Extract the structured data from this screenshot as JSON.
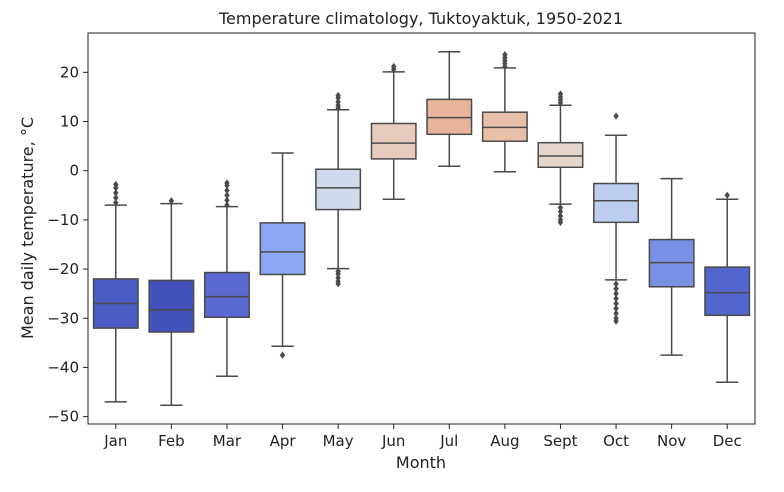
{
  "chart_data": {
    "type": "boxplot",
    "title": "Temperature climatology,  Tuktoyaktuk, 1950-2021",
    "xlabel": "Month",
    "ylabel": "Mean daily temperature, °C",
    "ylim": [
      -51.5,
      28
    ],
    "yticks": [
      -50,
      -40,
      -30,
      -20,
      -10,
      0,
      10,
      20
    ],
    "grid": false,
    "categories": [
      "Jan",
      "Feb",
      "Mar",
      "Apr",
      "May",
      "Jun",
      "Jul",
      "Aug",
      "Sept",
      "Oct",
      "Nov",
      "Dec"
    ],
    "boxes": [
      {
        "label": "Jan",
        "whisker_low": -47,
        "q1": -32,
        "median": -27,
        "q3": -22,
        "whisker_high": -7,
        "outliers": [
          -6.5,
          -5.5,
          -4.5,
          -3.5,
          -2.8
        ],
        "color": "#4a5bc4"
      },
      {
        "label": "Feb",
        "whisker_low": -47.7,
        "q1": -32.8,
        "median": -28.3,
        "q3": -22.3,
        "whisker_high": -6.7,
        "outliers": [
          -6.1
        ],
        "color": "#4352bb"
      },
      {
        "label": "Mar",
        "whisker_low": -41.8,
        "q1": -29.8,
        "median": -25.6,
        "q3": -20.7,
        "whisker_high": -7.3,
        "outliers": [
          -7,
          -6,
          -5,
          -4,
          -3,
          -2.5
        ],
        "color": "#5a6ad2"
      },
      {
        "label": "Apr",
        "whisker_low": -35.7,
        "q1": -21.1,
        "median": -16.5,
        "q3": -10.6,
        "whisker_high": 3.6,
        "outliers": [
          -37.5
        ],
        "color": "#8ba6f2"
      },
      {
        "label": "May",
        "whisker_low": -19.9,
        "q1": -7.9,
        "median": -3.5,
        "q3": 0.3,
        "whisker_high": 12.4,
        "outliers": [
          -20.5,
          -21,
          -21.8,
          -22.5,
          -23,
          12.8,
          13.3,
          14,
          14.8,
          15.3
        ],
        "color": "#cfd9eb"
      },
      {
        "label": "Jun",
        "whisker_low": -5.8,
        "q1": 2.4,
        "median": 5.6,
        "q3": 9.6,
        "whisker_high": 20.1,
        "outliers": [
          20.6,
          21.2
        ],
        "color": "#e7cbbd"
      },
      {
        "label": "Jul",
        "whisker_low": 0.9,
        "q1": 7.4,
        "median": 10.8,
        "q3": 14.5,
        "whisker_high": 24.2,
        "outliers": [],
        "color": "#e8b59c"
      },
      {
        "label": "Aug",
        "whisker_low": -0.2,
        "q1": 6.0,
        "median": 8.8,
        "q3": 11.9,
        "whisker_high": 20.9,
        "outliers": [
          21.2,
          21.8,
          22.4,
          23,
          23.6
        ],
        "color": "#e8c0aa"
      },
      {
        "label": "Sept",
        "whisker_low": -6.8,
        "q1": 0.7,
        "median": 3.0,
        "q3": 5.7,
        "whisker_high": 13.3,
        "outliers": [
          -7.5,
          -8.3,
          -9.2,
          -10,
          -10.5,
          13.8,
          14.4,
          15,
          15.6
        ],
        "color": "#e5d6cc"
      },
      {
        "label": "Oct",
        "whisker_low": -22.2,
        "q1": -10.5,
        "median": -6.1,
        "q3": -2.6,
        "whisker_high": 7.2,
        "outliers": [
          -23,
          -24,
          -25,
          -26,
          -27,
          -28,
          -29,
          -30,
          -30.6,
          11.1
        ],
        "color": "#bccdf0"
      },
      {
        "label": "Nov",
        "whisker_low": -37.5,
        "q1": -23.6,
        "median": -18.7,
        "q3": -14.0,
        "whisker_high": -1.6,
        "outliers": [],
        "color": "#7991e4"
      },
      {
        "label": "Dec",
        "whisker_low": -43.0,
        "q1": -29.4,
        "median": -24.8,
        "q3": -19.6,
        "whisker_high": -5.8,
        "outliers": [
          -5.0
        ],
        "color": "#5366ce"
      }
    ]
  }
}
